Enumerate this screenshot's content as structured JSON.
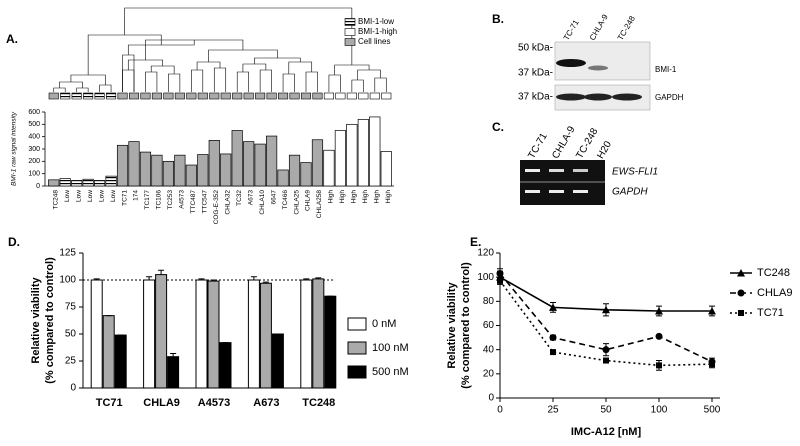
{
  "panels": [
    "A.",
    "B.",
    "C.",
    "D.",
    "E."
  ],
  "blot": {
    "lanes": [
      "TC-71",
      "CHLA-9",
      "TC-248"
    ],
    "markers": [
      "50 kDa-",
      "37 kDa-",
      "37 kDa-"
    ],
    "bands": [
      "BMI-1",
      "GAPDH"
    ]
  },
  "gel": {
    "lanes": [
      "TC-71",
      "CHLA-9",
      "TC-248",
      "H20"
    ],
    "bands": [
      "EWS-FLI1",
      "GAPDH"
    ]
  },
  "chart_data": [
    {
      "type": "bar",
      "ylabel": "BMI-1 raw signal intensity",
      "categories": [
        "TC248",
        "Low",
        "Low",
        "Low",
        "Low",
        "Low",
        "TC71",
        "174",
        "TC177",
        "TC106",
        "TC253",
        "A4573",
        "TTC487",
        "TTC547",
        "COG-E-352",
        "CHLA32",
        "TC32",
        "A673",
        "CHLA10",
        "6647",
        "TC466",
        "CHLA25",
        "CHLA9",
        "CHLA258",
        "High",
        "High",
        "High",
        "High",
        "High",
        "High"
      ],
      "values": [
        50,
        60,
        45,
        55,
        45,
        80,
        330,
        360,
        275,
        250,
        200,
        250,
        170,
        255,
        370,
        260,
        450,
        360,
        340,
        405,
        130,
        250,
        190,
        375,
        290,
        450,
        500,
        540,
        560,
        280
      ],
      "colors": [
        "#aaaaaa",
        "url(#hatch)",
        "url(#hatch)",
        "url(#hatch)",
        "url(#hatch)",
        "url(#hatch)",
        "#aaaaaa",
        "#aaaaaa",
        "#aaaaaa",
        "#aaaaaa",
        "#aaaaaa",
        "#aaaaaa",
        "#aaaaaa",
        "#aaaaaa",
        "#aaaaaa",
        "#aaaaaa",
        "#aaaaaa",
        "#aaaaaa",
        "#aaaaaa",
        "#aaaaaa",
        "#aaaaaa",
        "#aaaaaa",
        "#aaaaaa",
        "#aaaaaa",
        "#ffffff",
        "#ffffff",
        "#ffffff",
        "#ffffff",
        "#ffffff",
        "#ffffff"
      ],
      "legend": [
        {
          "name": "BMI-1-low",
          "color": "url(#hatch)"
        },
        {
          "name": "BMI-1-high",
          "color": "#ffffff"
        },
        {
          "name": "Cell lines",
          "color": "#aaaaaa"
        }
      ],
      "ylim": [
        0,
        600
      ],
      "yticks": [
        0,
        100,
        200,
        300,
        400,
        500,
        600
      ]
    },
    {
      "type": "grouped_bar",
      "ylabel": [
        "Relative viability",
        "(% compared to control)"
      ],
      "categories": [
        "TC71",
        "CHLA9",
        "A4573",
        "A673",
        "TC248"
      ],
      "series": [
        {
          "name": "0 nM",
          "color": "#ffffff",
          "values": [
            100,
            100,
            100,
            100,
            100
          ],
          "errors": [
            1,
            3,
            1,
            3,
            1
          ]
        },
        {
          "name": "100 nM",
          "color": "#aaaaaa",
          "values": [
            67,
            105,
            99,
            97,
            101
          ],
          "errors": [
            0,
            4,
            1,
            1,
            1
          ]
        },
        {
          "name": "500 nM",
          "color": "#000000",
          "values": [
            49,
            29,
            42,
            50,
            85
          ],
          "errors": [
            0,
            3,
            0,
            0,
            0
          ]
        }
      ],
      "reference_line": 100,
      "ylim": [
        0,
        125
      ],
      "yticks": [
        0,
        25,
        50,
        75,
        100,
        125
      ]
    },
    {
      "type": "line",
      "xlabel": "IMC-A12 [nM]",
      "ylabel": [
        "Relative viability",
        "(% compared to control)"
      ],
      "categories": [
        "0",
        "25",
        "50",
        "100",
        "500"
      ],
      "series": [
        {
          "name": "TC248",
          "marker": "triangle",
          "dash": "solid",
          "color": "#000000",
          "values": [
            100,
            75,
            73,
            72,
            72
          ],
          "errors": [
            5,
            4,
            5,
            4,
            4
          ]
        },
        {
          "name": "CHLA9",
          "marker": "circle",
          "dash": "dashed",
          "color": "#000000",
          "values": [
            103,
            50,
            40,
            51,
            30
          ],
          "errors": [
            4,
            2,
            5,
            0,
            3
          ]
        },
        {
          "name": "TC71",
          "marker": "square",
          "dash": "dotted",
          "color": "#000000",
          "values": [
            97,
            38,
            31,
            27,
            28
          ],
          "errors": [
            3,
            1,
            1,
            4,
            3
          ]
        }
      ],
      "ylim": [
        0,
        120
      ],
      "yticks": [
        0,
        20,
        40,
        60,
        80,
        100,
        120
      ]
    }
  ]
}
